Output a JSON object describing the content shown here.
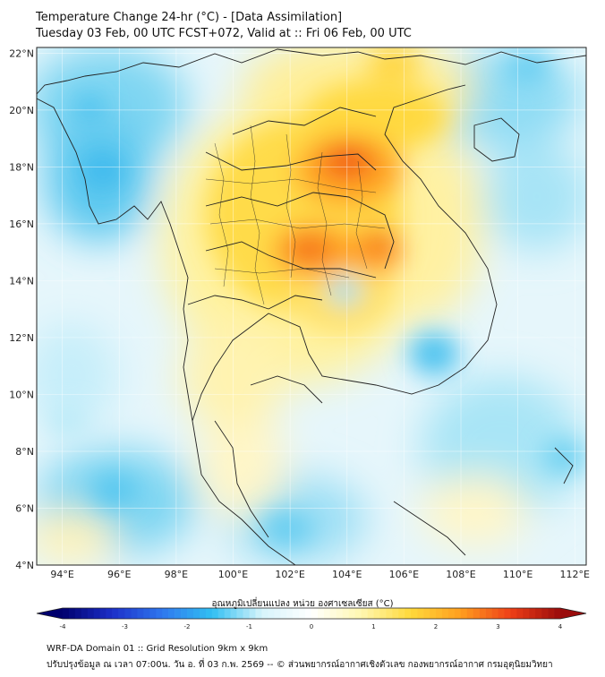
{
  "title": {
    "line1": "Temperature Change 24-hr (°C) - [Data Assimilation]",
    "line2": "Tuesday 03 Feb, 00 UTC FCST+072, Valid at :: Fri 06 Feb, 00 UTC"
  },
  "axes": {
    "lat_labels": [
      "22°N",
      "20°N",
      "18°N",
      "16°N",
      "14°N",
      "12°N",
      "10°N",
      "8°N",
      "6°N",
      "4°N"
    ],
    "lon_labels": [
      "94°E",
      "96°E",
      "98°E",
      "100°E",
      "102°E",
      "104°E",
      "106°E",
      "108°E",
      "110°E",
      "112°E"
    ],
    "lat_range": [
      4,
      22.2
    ],
    "lon_range": [
      93.1,
      112.4
    ]
  },
  "colorbar": {
    "title": "อุณหภูมิเปลี่ยนแปลง หน่วย องศาเซลเซียส (°C)",
    "ticks": [
      "-4",
      "-3",
      "-2",
      "-1",
      "0",
      "1",
      "2",
      "3",
      "4"
    ],
    "range": [
      -4,
      4
    ],
    "colors": [
      "#00006e",
      "#1c2fc9",
      "#2f78ee",
      "#31bff2",
      "#d6f4fb",
      "#ffffff",
      "#fff7b0",
      "#ffd93a",
      "#ff9e1f",
      "#ee3f17",
      "#9a0b0b"
    ]
  },
  "footer": {
    "line1": "WRF-DA Domain 01 :: Grid Resolution 9km x 9km",
    "line2": "ปรับปรุงข้อมูล ณ เวลา 07:00น. วัน อ. ที่ 03 ก.พ. 2569 -- © ส่วนพยากรณ์อากาศเชิงตัวเลข กองพยากรณ์อากาศ กรมอุตุนิยมวิทยา"
  }
}
